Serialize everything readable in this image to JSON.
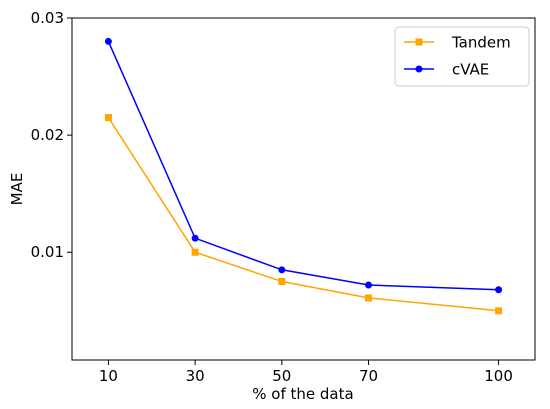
{
  "chart_data": {
    "type": "line",
    "xlabel": "% of the data",
    "ylabel": "MAE",
    "x": [
      10,
      30,
      50,
      70,
      100
    ],
    "x_tick_labels": [
      "10",
      "30",
      "50",
      "70",
      "100"
    ],
    "xlim": [
      1.6,
      108.4
    ],
    "y_ticks": [
      0.01,
      0.02,
      0.03
    ],
    "y_tick_labels": [
      "0.01",
      "0.02",
      "0.03"
    ],
    "ylim": [
      0.0008,
      0.03
    ],
    "grid": false,
    "legend_position": "top-right",
    "series": [
      {
        "name": "Tandem",
        "color": "#ffa500",
        "marker": "square",
        "values": [
          0.0215,
          0.01,
          0.0075,
          0.0061,
          0.005
        ]
      },
      {
        "name": "cVAE",
        "color": "#0000ff",
        "marker": "circle",
        "values": [
          0.028,
          0.0112,
          0.0085,
          0.0072,
          0.0068
        ]
      }
    ]
  }
}
